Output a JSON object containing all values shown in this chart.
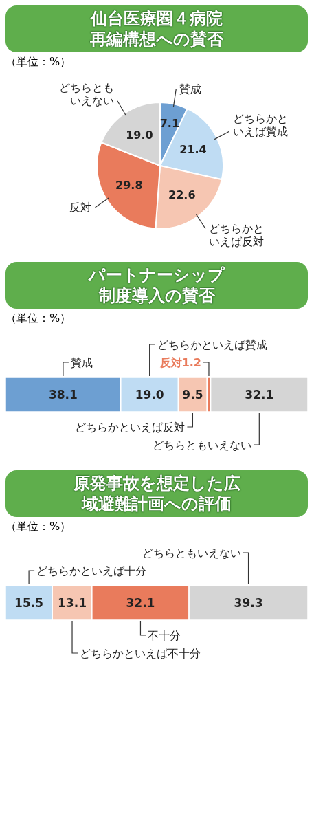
{
  "chart_data": [
    {
      "type": "pie",
      "title": "仙台医療圏４病院再編構想への賛否",
      "annotations": [
        "（単位：%）"
      ],
      "categories": [
        "賛成",
        "どちらかといえば賛成",
        "どちらかといえば反対",
        "反対",
        "どちらともいえない"
      ],
      "values": [
        7.1,
        21.4,
        22.6,
        29.8,
        19.0
      ],
      "value_labels": [
        "7.1",
        "21.4",
        "22.6",
        "29.8",
        "19.0"
      ],
      "colors": [
        "#6d9fd2",
        "#bfdcf3",
        "#f6c6b2",
        "#e97b5c",
        "#d5d5d5"
      ],
      "legend": false
    },
    {
      "type": "bar",
      "title": "パートナーシップ制度導入の賛否",
      "annotations": [
        "（単位：%）"
      ],
      "orientation": "horizontal",
      "stacked": true,
      "categories": [
        null
      ],
      "legend": false,
      "series": [
        {
          "name": "賛成",
          "color": "#6d9fd2",
          "values": [
            38.1
          ],
          "value_labels": [
            "38.1"
          ]
        },
        {
          "name": "どちらかといえば賛成",
          "color": "#bfdcf3",
          "values": [
            19.0
          ],
          "value_labels": [
            "19.0"
          ]
        },
        {
          "name": "どちらかといえば反対",
          "color": "#f6c6b2",
          "values": [
            9.5
          ],
          "value_labels": [
            "9.5"
          ]
        },
        {
          "name": "反対",
          "color": "#e97b5c",
          "values": [
            1.2
          ],
          "value_labels": [
            "1.2"
          ]
        },
        {
          "name": "どちらともいえない",
          "color": "#d5d5d5",
          "values": [
            32.1
          ],
          "value_labels": [
            "32.1"
          ]
        }
      ]
    },
    {
      "type": "bar",
      "title": "原発事故を想定した広域避難計画への評価",
      "annotations": [
        "（単位：%）"
      ],
      "orientation": "horizontal",
      "stacked": true,
      "categories": [
        null
      ],
      "legend": false,
      "series": [
        {
          "name": "どちらかといえば十分",
          "color": "#bfdcf3",
          "values": [
            15.5
          ],
          "value_labels": [
            "15.5"
          ]
        },
        {
          "name": "どちらかといえば不十分",
          "color": "#f6c6b2",
          "values": [
            13.1
          ],
          "value_labels": [
            "13.1"
          ]
        },
        {
          "name": "不十分",
          "color": "#e97b5c",
          "values": [
            32.1
          ],
          "value_labels": [
            "32.1"
          ]
        },
        {
          "name": "どちらともいえない",
          "color": "#d5d5d5",
          "values": [
            39.3
          ],
          "value_labels": [
            "39.3"
          ]
        }
      ]
    }
  ]
}
